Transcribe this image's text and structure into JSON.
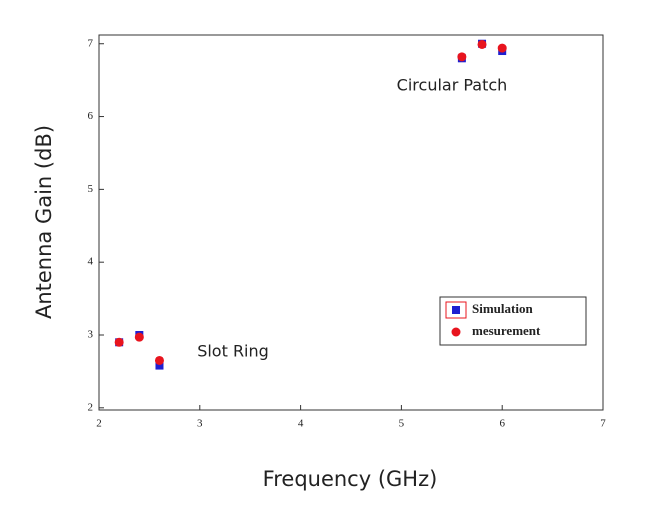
{
  "chart_data": {
    "type": "scatter",
    "xlabel": "Frequency (GHz)",
    "ylabel": "Antenna Gain (dB)",
    "annotations": [
      "Circular Patch",
      "Slot Ring"
    ],
    "xlim": [
      2,
      7
    ],
    "ylim": [
      1.97,
      7.12
    ],
    "xticks": [
      2,
      3,
      4,
      5,
      6,
      7
    ],
    "yticks": [
      2,
      3,
      4,
      5,
      6,
      7
    ],
    "grid": false,
    "legend": "lower right",
    "series": [
      {
        "name": "Simulation",
        "color": "#1f1fd0",
        "marker": "square",
        "x": [
          2.2,
          2.4,
          2.6,
          5.6,
          5.8,
          6.0
        ],
        "values": [
          2.9,
          3.0,
          2.58,
          6.8,
          7.0,
          6.9
        ]
      },
      {
        "name": "mesurement",
        "color": "#e8141e",
        "marker": "circle",
        "x": [
          2.2,
          2.4,
          2.6,
          5.6,
          5.8,
          6.0
        ],
        "values": [
          2.9,
          2.97,
          2.65,
          6.82,
          6.99,
          6.94
        ]
      }
    ]
  }
}
